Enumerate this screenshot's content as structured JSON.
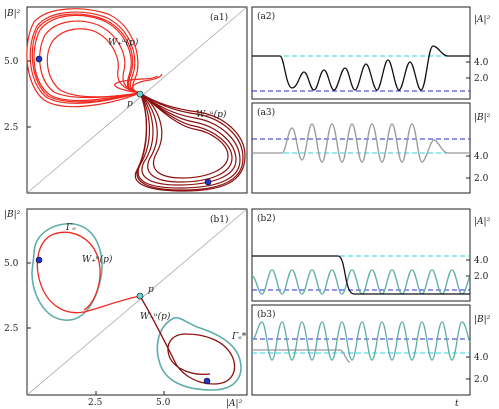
{
  "panels": {
    "a1": {
      "label": "(a1)",
      "ylabel": "|B|²",
      "yticks": [
        "5.0",
        "2.5"
      ],
      "annotations": {
        "wplus": "W₊ᵘ(p)",
        "wminus": "W₋ᵘ(p)",
        "p": "p"
      }
    },
    "a2": {
      "label": "(a2)",
      "ylabel": "|A|²",
      "yticks": [
        "4.0",
        "2.0"
      ]
    },
    "a3": {
      "label": "(a3)",
      "ylabel": "|B|²",
      "yticks": [
        "4.0",
        "2.0"
      ]
    },
    "b1": {
      "label": "(b1)",
      "ylabel": "|B|²",
      "xlabel": "|A|²",
      "yticks": [
        "5.0",
        "2.5"
      ],
      "xticks": [
        "2.5",
        "5.0"
      ],
      "annotations": {
        "gamma": "Γₒ",
        "gammastar": "Γₒ*",
        "wplus": "W₊ᵘ(p)",
        "wminus": "W₋ᵘ(p)",
        "p": "p"
      }
    },
    "b2": {
      "label": "(b2)",
      "ylabel": "|A|²",
      "yticks": [
        "4.0",
        "2.0"
      ]
    },
    "b3": {
      "label": "(b3)",
      "ylabel": "|B|²",
      "yticks": [
        "4.0",
        "2.0"
      ],
      "xlabel": "t"
    }
  },
  "colors": {
    "bright_red": "#f0281e",
    "dark_red": "#8b0f0f",
    "teal": "#5fada8",
    "cyan_dash": "#33cfd6",
    "blue_dash": "#2a2ad0",
    "black": "#111111",
    "gray": "#999999",
    "point_blue": "#2233cc",
    "point_cyan": "#66d6dd"
  }
}
